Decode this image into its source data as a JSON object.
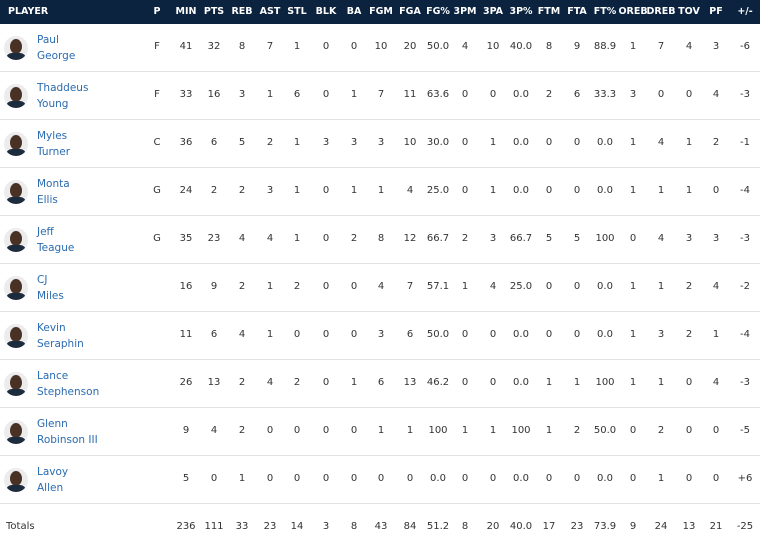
{
  "table": {
    "headers": [
      "PLAYER",
      "P",
      "MIN",
      "PTS",
      "REB",
      "AST",
      "STL",
      "BLK",
      "BA",
      "FGM",
      "FGA",
      "FG%",
      "3PM",
      "3PA",
      "3P%",
      "FTM",
      "FTA",
      "FT%",
      "OREB",
      "DREB",
      "TOV",
      "PF",
      "+/-"
    ],
    "rows": [
      {
        "first": "Paul",
        "last": "George",
        "pos": "F",
        "stats": [
          "41",
          "32",
          "8",
          "7",
          "1",
          "0",
          "0",
          "10",
          "20",
          "50.0",
          "4",
          "10",
          "40.0",
          "8",
          "9",
          "88.9",
          "1",
          "7",
          "4",
          "3",
          "-6"
        ]
      },
      {
        "first": "Thaddeus",
        "last": "Young",
        "pos": "F",
        "stats": [
          "33",
          "16",
          "3",
          "1",
          "6",
          "0",
          "1",
          "7",
          "11",
          "63.6",
          "0",
          "0",
          "0.0",
          "2",
          "6",
          "33.3",
          "3",
          "0",
          "0",
          "4",
          "-3"
        ]
      },
      {
        "first": "Myles",
        "last": "Turner",
        "pos": "C",
        "stats": [
          "36",
          "6",
          "5",
          "2",
          "1",
          "3",
          "3",
          "3",
          "10",
          "30.0",
          "0",
          "1",
          "0.0",
          "0",
          "0",
          "0.0",
          "1",
          "4",
          "1",
          "2",
          "-1"
        ]
      },
      {
        "first": "Monta",
        "last": "Ellis",
        "pos": "G",
        "stats": [
          "24",
          "2",
          "2",
          "3",
          "1",
          "0",
          "1",
          "1",
          "4",
          "25.0",
          "0",
          "1",
          "0.0",
          "0",
          "0",
          "0.0",
          "1",
          "1",
          "1",
          "0",
          "-4"
        ]
      },
      {
        "first": "Jeff",
        "last": "Teague",
        "pos": "G",
        "stats": [
          "35",
          "23",
          "4",
          "4",
          "1",
          "0",
          "2",
          "8",
          "12",
          "66.7",
          "2",
          "3",
          "66.7",
          "5",
          "5",
          "100",
          "0",
          "4",
          "3",
          "3",
          "-3"
        ]
      },
      {
        "first": "CJ",
        "last": "Miles",
        "stats": [
          "16",
          "9",
          "2",
          "1",
          "2",
          "0",
          "0",
          "4",
          "7",
          "57.1",
          "1",
          "4",
          "25.0",
          "0",
          "0",
          "0.0",
          "1",
          "1",
          "2",
          "4",
          "-2"
        ]
      },
      {
        "first": "Kevin",
        "last": "Seraphin",
        "stats": [
          "11",
          "6",
          "4",
          "1",
          "0",
          "0",
          "0",
          "3",
          "6",
          "50.0",
          "0",
          "0",
          "0.0",
          "0",
          "0",
          "0.0",
          "1",
          "3",
          "2",
          "1",
          "-4"
        ]
      },
      {
        "first": "Lance",
        "last": "Stephenson",
        "stats": [
          "26",
          "13",
          "2",
          "4",
          "2",
          "0",
          "1",
          "6",
          "13",
          "46.2",
          "0",
          "0",
          "0.0",
          "1",
          "1",
          "100",
          "1",
          "1",
          "0",
          "4",
          "-3"
        ]
      },
      {
        "first": "Glenn",
        "last": "Robinson III",
        "stats": [
          "9",
          "4",
          "2",
          "0",
          "0",
          "0",
          "0",
          "1",
          "1",
          "100",
          "1",
          "1",
          "100",
          "1",
          "2",
          "50.0",
          "0",
          "2",
          "0",
          "0",
          "-5"
        ]
      },
      {
        "first": "Lavoy",
        "last": "Allen",
        "stats": [
          "5",
          "0",
          "1",
          "0",
          "0",
          "0",
          "0",
          "0",
          "0",
          "0.0",
          "0",
          "0",
          "0.0",
          "0",
          "0",
          "0.0",
          "0",
          "1",
          "0",
          "0",
          "+6"
        ]
      }
    ],
    "totals": {
      "label": "Totals",
      "stats": [
        "236",
        "111",
        "33",
        "23",
        "14",
        "3",
        "8",
        "43",
        "84",
        "51.2",
        "8",
        "20",
        "40.0",
        "17",
        "23",
        "73.9",
        "9",
        "24",
        "13",
        "21",
        "-25"
      ]
    }
  }
}
